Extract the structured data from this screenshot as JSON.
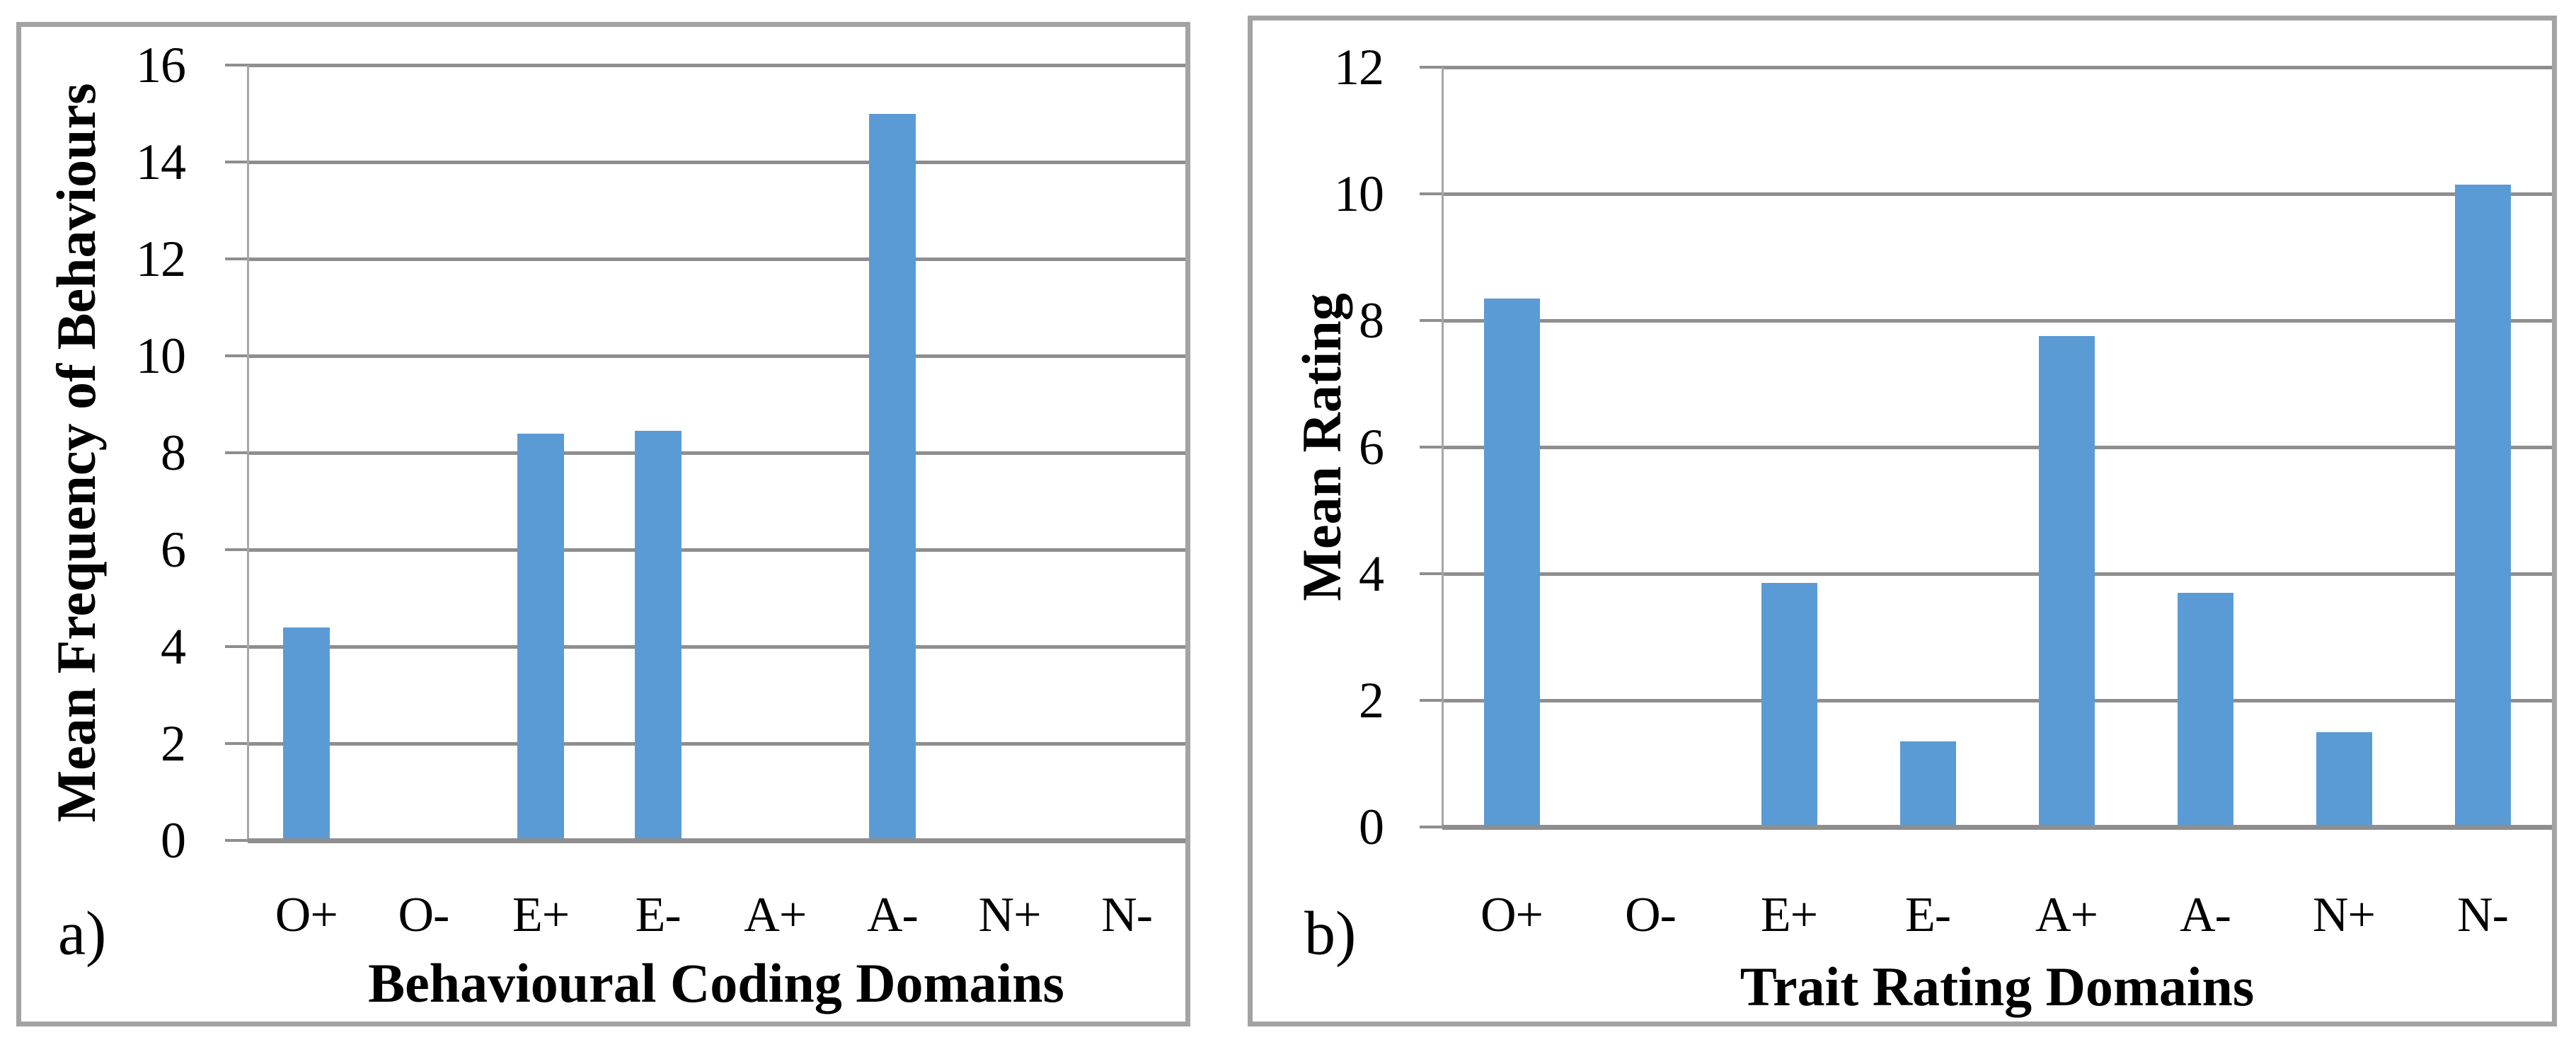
{
  "figure": {
    "panels": [
      {
        "panel_label": "a)"
      },
      {
        "panel_label": "b)"
      }
    ]
  },
  "colors": {
    "bar": "#5B9BD5",
    "gridline": "#8E8E8E",
    "axis_line": "#A6A6A6",
    "panel_border": "#A3A3A3",
    "text": "#000000"
  },
  "chart_data": [
    {
      "type": "bar",
      "panel_label": "a)",
      "categories": [
        "O+",
        "O-",
        "E+",
        "E-",
        "A+",
        "A-",
        "N+",
        "N-"
      ],
      "values": [
        4.4,
        0,
        8.4,
        8.45,
        0,
        15,
        0,
        0
      ],
      "xlabel": "Behavioural Coding Domains",
      "ylabel": "Mean Frequency of Behaviours",
      "ylim": [
        0,
        16
      ],
      "ytick_step": 2,
      "yticks": [
        0,
        2,
        4,
        6,
        8,
        10,
        12,
        14,
        16
      ],
      "grid": true,
      "legend": "none",
      "bar_color": "#5B9BD5"
    },
    {
      "type": "bar",
      "panel_label": "b)",
      "categories": [
        "O+",
        "O-",
        "E+",
        "E-",
        "A+",
        "A-",
        "N+",
        "N-"
      ],
      "values": [
        8.35,
        0,
        3.85,
        1.35,
        7.75,
        3.7,
        1.5,
        10.15
      ],
      "xlabel": "Trait Rating Domains",
      "ylabel": "Mean Rating",
      "ylim": [
        0,
        12
      ],
      "ytick_step": 2,
      "yticks": [
        0,
        2,
        4,
        6,
        8,
        10,
        12
      ],
      "grid": true,
      "legend": "none",
      "bar_color": "#5B9BD5"
    }
  ]
}
